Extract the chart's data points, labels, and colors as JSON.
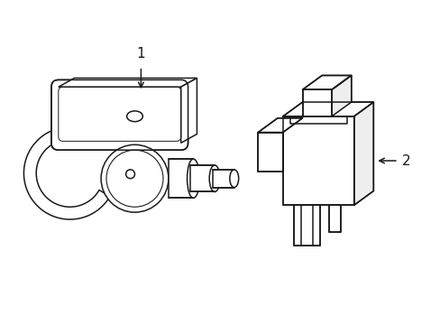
{
  "background_color": "#ffffff",
  "line_color": "#1a1a1a",
  "line_width": 1.1,
  "label1_text": "1",
  "label2_text": "2"
}
